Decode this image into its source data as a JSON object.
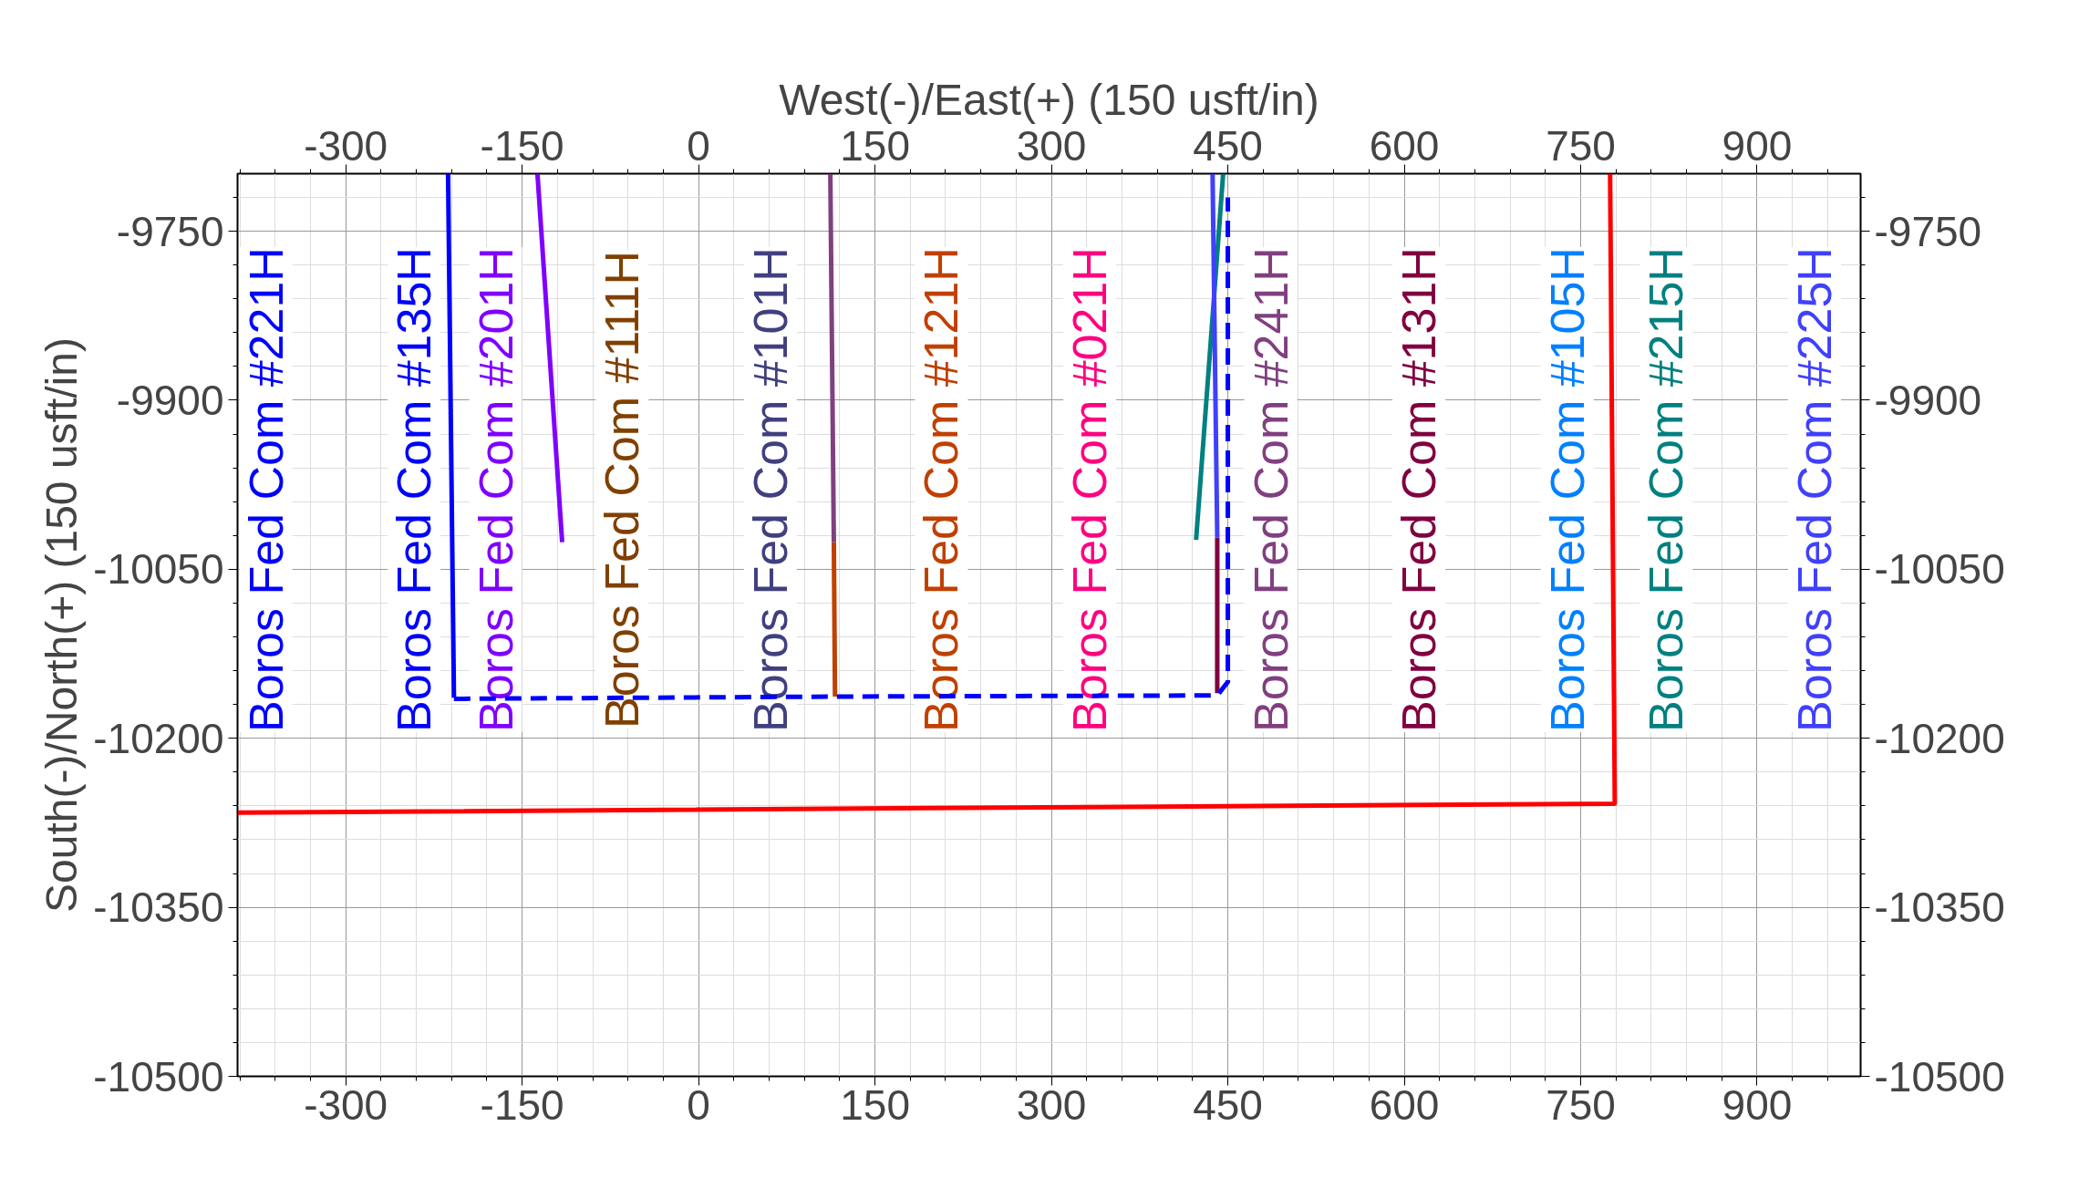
{
  "chart_data": {
    "type": "line",
    "x2label": "West(-)/East(+) (150 usft/in)",
    "ylabel": "South(-)/North(+) (150 usft/in)",
    "xlim": [
      -392,
      988
    ],
    "ylim": [
      -10500,
      -9699
    ],
    "xticks": [
      -300,
      -150,
      0,
      150,
      300,
      450,
      600,
      750,
      900
    ],
    "yticks": [
      -10500,
      -10350,
      -10200,
      -10050,
      -9900,
      -9750
    ],
    "x2lim": [
      -392,
      988
    ],
    "x2ticks": [
      -300,
      -150,
      0,
      150,
      300,
      450,
      600,
      750,
      900
    ],
    "y2lim": [
      -10500,
      -9699
    ],
    "y2ticks": [
      -10500,
      -10350,
      -10200,
      -10050,
      -9900,
      -9750
    ],
    "grid": true,
    "legend": false,
    "marker": "none",
    "series": [
      {
        "name": "Boros Fed Com #221H",
        "color": "#0000ff",
        "x": [
          -213,
          -208
        ],
        "values": [
          -9699,
          -10164
        ]
      },
      {
        "name": "Boros Fed Com #135H",
        "color": "#0000ff"
      },
      {
        "name": "Boros Fed Com #201H",
        "color": "#8000ff",
        "x": [
          -137,
          -116
        ],
        "values": [
          -9699,
          -10026
        ]
      },
      {
        "name": "Boros Fed Com #111H",
        "color": "#804000"
      },
      {
        "name": "Boros Fed Com #101H",
        "color": "#404080"
      },
      {
        "name": "Boros Fed Com #121H",
        "color": "#c04000",
        "x": [
          115,
          116
        ],
        "values": [
          -10026,
          -10163
        ]
      },
      {
        "name": "Boros Fed Com #021H",
        "color": "#ff0080"
      },
      {
        "name": "Boros Fed Com #241H",
        "color": "#804080",
        "x": [
          112,
          115
        ],
        "values": [
          -9699,
          -10026
        ]
      },
      {
        "name": "Boros Fed Com #131H",
        "color": "#800040",
        "x": [
          441,
          441
        ],
        "values": [
          -10022,
          -10160
        ]
      },
      {
        "name": "Boros Fed Com #105H",
        "color": "#0080ff"
      },
      {
        "name": "Boros Fed Com #215H",
        "color": "#008080",
        "x": [
          423,
          446
        ],
        "values": [
          -10024,
          -9699
        ]
      },
      {
        "name": "Boros Fed Com #225H",
        "color": "#4040ff",
        "x": [
          437,
          441
        ],
        "values": [
          -9699,
          -10022
        ]
      },
      {
        "color": "#0000ff",
        "line_style": "dashed",
        "x": [
          -208,
          116,
          441,
          450,
          450
        ],
        "values": [
          -10165,
          -10163,
          -10162,
          -10150,
          -9720
        ]
      },
      {
        "color": "#ff0000",
        "x": [
          -392,
          779,
          775
        ],
        "values": [
          -10266,
          -10258,
          -9699
        ]
      }
    ]
  }
}
